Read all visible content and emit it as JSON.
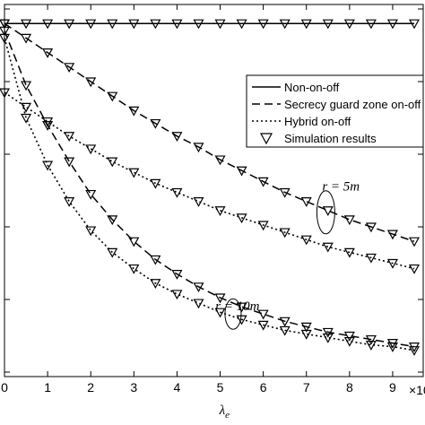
{
  "chart_data": {
    "type": "line",
    "xlabel": "λe",
    "x_exponent_label": "×10",
    "xlim": [
      0,
      9.5
    ],
    "ylim": [
      0,
      1
    ],
    "grid": false,
    "legend_placement": "top-right",
    "x_ticks": [
      "0",
      "1",
      "2",
      "3",
      "4",
      "5",
      "6",
      "7",
      "8",
      "9"
    ],
    "x": [
      0,
      0.5,
      1,
      1.5,
      2,
      2.5,
      3,
      3.5,
      4,
      4.5,
      5,
      5.5,
      6,
      6.5,
      7,
      7.5,
      8,
      8.5,
      9,
      9.5
    ],
    "legend": [
      {
        "label": "Non-on-off",
        "style": "solid",
        "marker": false
      },
      {
        "label": "Secrecy guard zone on-off",
        "style": "dashed",
        "marker": false
      },
      {
        "label": "Hybrid on-off",
        "style": "dotted",
        "marker": false
      },
      {
        "label": "Simulation results",
        "style": "none",
        "marker": true
      }
    ],
    "series": [
      {
        "style": "solid",
        "values": [
          0.96,
          0.96,
          0.96,
          0.96,
          0.96,
          0.96,
          0.96,
          0.96,
          0.96,
          0.96,
          0.96,
          0.96,
          0.96,
          0.96,
          0.96,
          0.96,
          0.96,
          0.96,
          0.96,
          0.96
        ]
      },
      {
        "style": "dashed",
        "values": [
          0.96,
          0.92,
          0.88,
          0.84,
          0.8,
          0.76,
          0.72,
          0.685,
          0.65,
          0.62,
          0.585,
          0.555,
          0.525,
          0.495,
          0.47,
          0.445,
          0.42,
          0.4,
          0.38,
          0.36
        ]
      },
      {
        "style": "dotted",
        "values": [
          0.77,
          0.73,
          0.69,
          0.65,
          0.615,
          0.58,
          0.55,
          0.52,
          0.495,
          0.47,
          0.445,
          0.425,
          0.405,
          0.385,
          0.365,
          0.345,
          0.33,
          0.315,
          0.3,
          0.285
        ]
      },
      {
        "style": "dashed",
        "values": [
          0.94,
          0.79,
          0.68,
          0.58,
          0.49,
          0.42,
          0.36,
          0.31,
          0.27,
          0.235,
          0.205,
          0.18,
          0.16,
          0.14,
          0.125,
          0.11,
          0.1,
          0.09,
          0.08,
          0.07
        ]
      },
      {
        "style": "dotted",
        "values": [
          0.92,
          0.7,
          0.57,
          0.47,
          0.39,
          0.33,
          0.285,
          0.245,
          0.215,
          0.19,
          0.165,
          0.145,
          0.13,
          0.115,
          0.105,
          0.095,
          0.085,
          0.075,
          0.07,
          0.06
        ]
      }
    ],
    "annotations": [
      {
        "text": "r = 5m",
        "x": 7.8,
        "y": 0.5
      },
      {
        "text": "r = 10m",
        "x": 5.4,
        "y": 0.17
      }
    ]
  }
}
